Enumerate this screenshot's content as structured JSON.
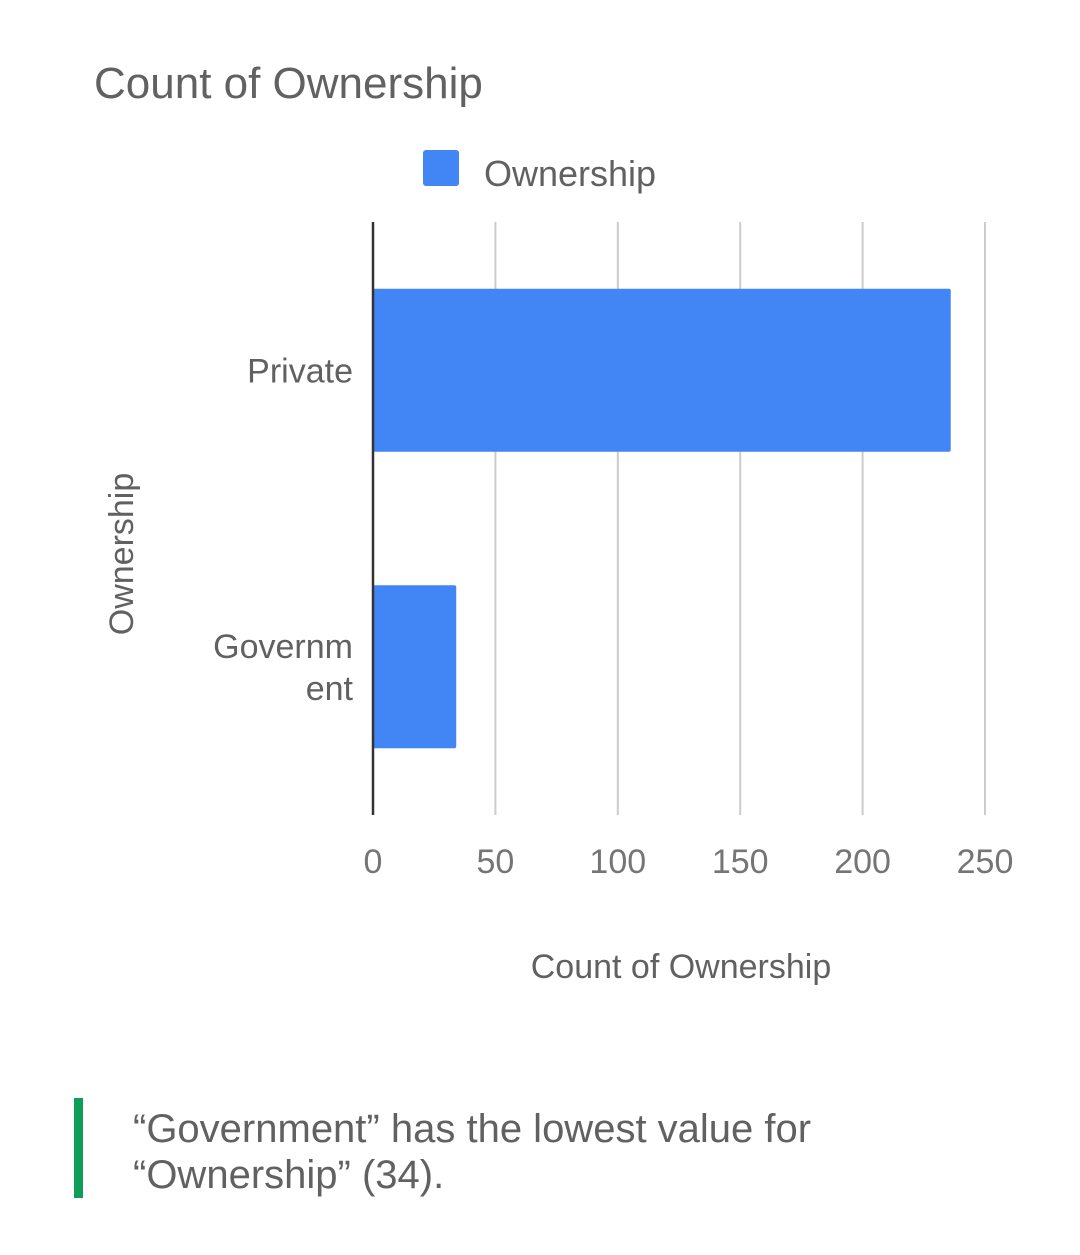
{
  "chart_data": {
    "type": "bar",
    "orientation": "horizontal",
    "title": "Count of Ownership",
    "categories": [
      "Private",
      "Government"
    ],
    "category_display": [
      [
        "Private"
      ],
      [
        "Governm",
        "ent"
      ]
    ],
    "series": [
      {
        "name": "Ownership",
        "values": [
          236,
          34
        ],
        "color": "#4285f4"
      }
    ],
    "xlabel": "Count of Ownership",
    "ylabel": "Ownership",
    "xlim": [
      0,
      250
    ],
    "xticks": [
      0,
      50,
      100,
      150,
      200,
      250
    ],
    "grid": true,
    "legend_position": "top"
  },
  "insight": {
    "text": "“Government” has the lowest value for “Ownership” (34).",
    "accent_color": "#0f9d58"
  }
}
